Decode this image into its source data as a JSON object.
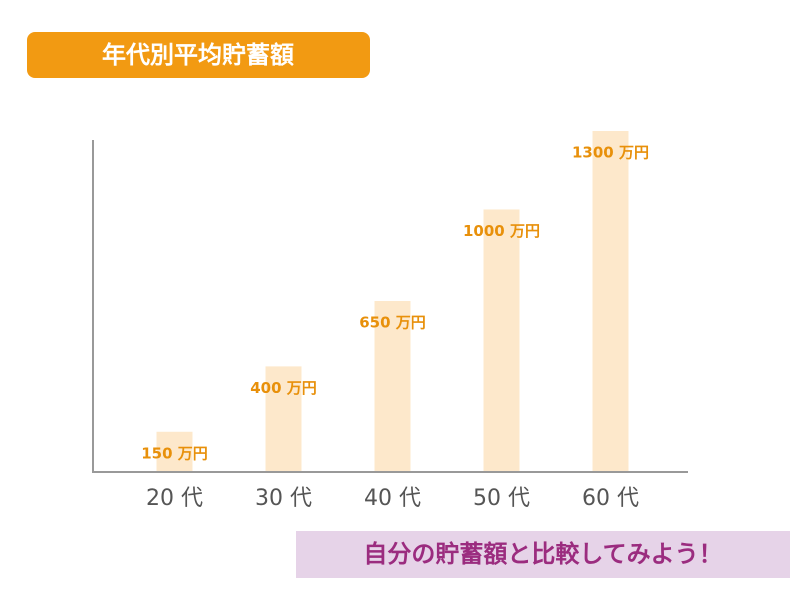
{
  "chart_data": {
    "type": "bar",
    "title": "年代別平均貯蓄額",
    "footer": "自分の貯蓄額と比較してみよう！",
    "categories": [
      "20 代",
      "30 代",
      "40 代",
      "50 代",
      "60 代"
    ],
    "values": [
      150,
      400,
      650,
      1000,
      1300
    ],
    "value_labels": [
      "150 万円",
      "400 万円",
      "650 万円",
      "1000 万円",
      "1300 万円"
    ],
    "color": "#fde8cb",
    "label_color": "#e8900a",
    "ylim": [
      0,
      1300
    ]
  }
}
